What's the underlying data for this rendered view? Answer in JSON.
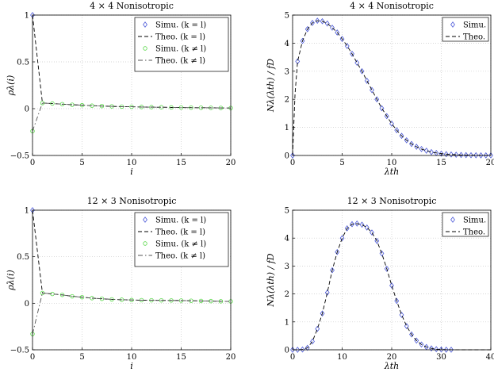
{
  "chart_data": [
    {
      "type": "line",
      "title": "4 × 4 Nonisotropic",
      "xlabel": "i",
      "ylabel": "ρλ(i)",
      "xlim": [
        0,
        20
      ],
      "ylim": [
        -0.5,
        1
      ],
      "xticks": [
        "0",
        "5",
        "10",
        "15",
        "20"
      ],
      "yticks": [
        "−0.5",
        "0",
        "0.5",
        "1"
      ],
      "grid": true,
      "legend": "top-right",
      "series": [
        {
          "name": "Simu. (k = l)",
          "style": "blue-diamond-markers",
          "x": [
            0
          ],
          "y": [
            1.0
          ]
        },
        {
          "name": "Theo. (k = l)",
          "style": "black-dashed",
          "x": [
            0,
            1,
            2,
            3,
            4,
            5,
            6,
            7,
            8,
            9,
            10,
            11,
            12,
            13,
            14,
            15,
            16,
            17,
            18,
            19,
            20
          ],
          "y": [
            1.0,
            0.06,
            0.055,
            0.048,
            0.042,
            0.037,
            0.032,
            0.028,
            0.025,
            0.022,
            0.02,
            0.018,
            0.016,
            0.015,
            0.013,
            0.012,
            0.011,
            0.01,
            0.009,
            0.008,
            0.007
          ]
        },
        {
          "name": "Simu. (k ≠ l)",
          "style": "green-circle-markers",
          "x": [
            0,
            1,
            2,
            3,
            4,
            5,
            6,
            7,
            8,
            9,
            10,
            11,
            12,
            13,
            14,
            15,
            16,
            17,
            18,
            19,
            20
          ],
          "y": [
            -0.24,
            0.06,
            0.055,
            0.048,
            0.042,
            0.037,
            0.032,
            0.028,
            0.025,
            0.022,
            0.02,
            0.018,
            0.016,
            0.015,
            0.013,
            0.012,
            0.011,
            0.01,
            0.009,
            0.008,
            0.007
          ]
        },
        {
          "name": "Theo. (k ≠ l)",
          "style": "gray-dashdot",
          "x": [
            0,
            1,
            2,
            3,
            4,
            5,
            6,
            7,
            8,
            9,
            10,
            11,
            12,
            13,
            14,
            15,
            16,
            17,
            18,
            19,
            20
          ],
          "y": [
            -0.24,
            0.06,
            0.055,
            0.048,
            0.042,
            0.037,
            0.032,
            0.028,
            0.025,
            0.022,
            0.02,
            0.018,
            0.016,
            0.015,
            0.013,
            0.012,
            0.011,
            0.01,
            0.009,
            0.008,
            0.007
          ]
        }
      ]
    },
    {
      "type": "line",
      "title": "4 × 4 Nonisotropic",
      "xlabel": "λth",
      "ylabel": "Nλ(λth) / fD",
      "xlim": [
        0,
        20
      ],
      "ylim": [
        0,
        5
      ],
      "xticks": [
        "0",
        "5",
        "10",
        "15",
        "20"
      ],
      "yticks": [
        "0",
        "1",
        "2",
        "3",
        "4",
        "5"
      ],
      "grid": true,
      "legend": "top-right",
      "series": [
        {
          "name": "Simu.",
          "style": "blue-diamond-markers",
          "x": [
            0,
            0.5,
            1,
            1.5,
            2,
            2.5,
            3,
            3.5,
            4,
            4.5,
            5,
            5.5,
            6,
            6.5,
            7,
            7.5,
            8,
            8.5,
            9,
            9.5,
            10,
            10.5,
            11,
            11.5,
            12,
            12.5,
            13,
            13.5,
            14,
            14.5,
            15,
            15.5,
            16,
            16.5,
            17,
            17.5,
            18,
            18.5,
            19,
            19.5,
            20
          ],
          "y": [
            0,
            3.35,
            4.08,
            4.5,
            4.72,
            4.8,
            4.78,
            4.7,
            4.55,
            4.38,
            4.15,
            3.9,
            3.62,
            3.3,
            3.0,
            2.66,
            2.33,
            2.0,
            1.68,
            1.4,
            1.13,
            0.9,
            0.7,
            0.54,
            0.41,
            0.31,
            0.23,
            0.17,
            0.12,
            0.09,
            0.065,
            0.047,
            0.034,
            0.025,
            0.018,
            0.013,
            0.009,
            0.007,
            0.005,
            0.004,
            0.003
          ]
        },
        {
          "name": "Theo.",
          "style": "black-dashed",
          "x": [
            0,
            0.25,
            0.5,
            1,
            1.5,
            2,
            2.5,
            3,
            3.5,
            4,
            4.5,
            5,
            5.5,
            6,
            6.5,
            7,
            7.5,
            8,
            8.5,
            9,
            9.5,
            10,
            10.5,
            11,
            11.5,
            12,
            12.5,
            13,
            13.5,
            14,
            15,
            16,
            17,
            18,
            19,
            20
          ],
          "y": [
            0,
            2.2,
            3.35,
            4.08,
            4.5,
            4.72,
            4.8,
            4.78,
            4.7,
            4.55,
            4.38,
            4.15,
            3.9,
            3.62,
            3.3,
            3.0,
            2.66,
            2.33,
            2.0,
            1.68,
            1.4,
            1.13,
            0.9,
            0.7,
            0.54,
            0.41,
            0.31,
            0.23,
            0.17,
            0.12,
            0.065,
            0.034,
            0.018,
            0.009,
            0.005,
            0.003
          ]
        }
      ]
    },
    {
      "type": "line",
      "title": "12 × 3 Nonisotropic",
      "xlabel": "i",
      "ylabel": "ρλ(i)",
      "xlim": [
        0,
        20
      ],
      "ylim": [
        -0.5,
        1
      ],
      "xticks": [
        "0",
        "5",
        "10",
        "15",
        "20"
      ],
      "yticks": [
        "−0.5",
        "0",
        "0.5",
        "1"
      ],
      "grid": true,
      "legend": "top-right",
      "series": [
        {
          "name": "Simu. (k = l)",
          "style": "blue-diamond-markers",
          "x": [
            0
          ],
          "y": [
            1.0
          ]
        },
        {
          "name": "Theo. (k = l)",
          "style": "black-dashed",
          "x": [
            0,
            1,
            2,
            3,
            4,
            5,
            6,
            7,
            8,
            9,
            10,
            11,
            12,
            13,
            14,
            15,
            16,
            17,
            18,
            19,
            20
          ],
          "y": [
            1.0,
            0.11,
            0.1,
            0.09,
            0.075,
            0.065,
            0.055,
            0.048,
            0.042,
            0.038,
            0.035,
            0.033,
            0.032,
            0.031,
            0.03,
            0.029,
            0.027,
            0.025,
            0.023,
            0.021,
            0.02
          ]
        },
        {
          "name": "Simu. (k ≠ l)",
          "style": "green-circle-markers",
          "x": [
            0,
            1,
            2,
            3,
            4,
            5,
            6,
            7,
            8,
            9,
            10,
            11,
            12,
            13,
            14,
            15,
            16,
            17,
            18,
            19,
            20
          ],
          "y": [
            -0.33,
            0.11,
            0.1,
            0.09,
            0.075,
            0.065,
            0.055,
            0.048,
            0.042,
            0.038,
            0.035,
            0.033,
            0.032,
            0.031,
            0.03,
            0.029,
            0.027,
            0.025,
            0.023,
            0.021,
            0.02
          ]
        },
        {
          "name": "Theo. (k ≠ l)",
          "style": "gray-dashdot",
          "x": [
            0,
            1,
            2,
            3,
            4,
            5,
            6,
            7,
            8,
            9,
            10,
            11,
            12,
            13,
            14,
            15,
            16,
            17,
            18,
            19,
            20
          ],
          "y": [
            -0.33,
            0.11,
            0.1,
            0.09,
            0.075,
            0.065,
            0.055,
            0.048,
            0.042,
            0.038,
            0.035,
            0.033,
            0.032,
            0.031,
            0.03,
            0.029,
            0.027,
            0.025,
            0.023,
            0.021,
            0.02
          ]
        }
      ]
    },
    {
      "type": "line",
      "title": "12 × 3 Nonisotropic",
      "xlabel": "λth",
      "ylabel": "Nλ(λth) / fD",
      "xlim": [
        0,
        40
      ],
      "ylim": [
        0,
        5
      ],
      "xticks": [
        "0",
        "10",
        "20",
        "30",
        "40"
      ],
      "yticks": [
        "0",
        "1",
        "2",
        "3",
        "4",
        "5"
      ],
      "grid": true,
      "legend": "top-right",
      "series": [
        {
          "name": "Simu.",
          "style": "blue-diamond-markers",
          "x": [
            0,
            1,
            2,
            3,
            4,
            5,
            6,
            7,
            8,
            9,
            10,
            11,
            12,
            13,
            14,
            15,
            16,
            17,
            18,
            19,
            20,
            21,
            22,
            23,
            24,
            25,
            26,
            27,
            28,
            29,
            30,
            31,
            32
          ],
          "y": [
            0,
            0,
            0.01,
            0.07,
            0.3,
            0.75,
            1.3,
            2.05,
            2.85,
            3.5,
            4.0,
            4.35,
            4.5,
            4.52,
            4.48,
            4.38,
            4.2,
            3.9,
            3.45,
            2.9,
            2.3,
            1.75,
            1.25,
            0.85,
            0.55,
            0.33,
            0.19,
            0.1,
            0.05,
            0.02,
            0.01,
            0.005,
            0.002
          ]
        },
        {
          "name": "Theo.",
          "style": "black-dashed",
          "x": [
            0,
            1,
            2,
            3,
            4,
            5,
            6,
            7,
            8,
            9,
            10,
            11,
            12,
            13,
            14,
            15,
            16,
            17,
            18,
            19,
            20,
            21,
            22,
            23,
            24,
            25,
            26,
            27,
            28,
            29,
            30,
            32,
            34,
            36,
            38,
            40
          ],
          "y": [
            0,
            0,
            0.01,
            0.07,
            0.3,
            0.75,
            1.3,
            2.05,
            2.85,
            3.5,
            4.0,
            4.35,
            4.5,
            4.52,
            4.48,
            4.38,
            4.2,
            3.9,
            3.45,
            2.9,
            2.3,
            1.75,
            1.25,
            0.85,
            0.55,
            0.33,
            0.19,
            0.1,
            0.05,
            0.02,
            0.01,
            0.002,
            0,
            0,
            0,
            0
          ]
        }
      ]
    }
  ],
  "colors": {
    "simu_eq": "#4a58d8",
    "simu_neq": "#58d848",
    "theo_eq": "#000000",
    "theo_neq": "#555555",
    "grid": "#c8c8c8"
  }
}
